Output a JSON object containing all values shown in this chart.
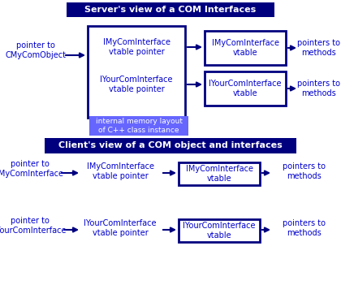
{
  "bg_color": "#ffffff",
  "dark_blue": "#00007f",
  "med_blue": "#0000cc",
  "light_blue": "#6699ff",
  "title_bg": "#00007f",
  "title_fg": "#ffffff",
  "annot_bg": "#6666ff",
  "annot_fg": "#ffffff",
  "title1": "Server's view of a COM Interfaces",
  "title2": "Client's view of a COM object and interfaces",
  "annot": "internal memory layout\nof C++ class instance"
}
